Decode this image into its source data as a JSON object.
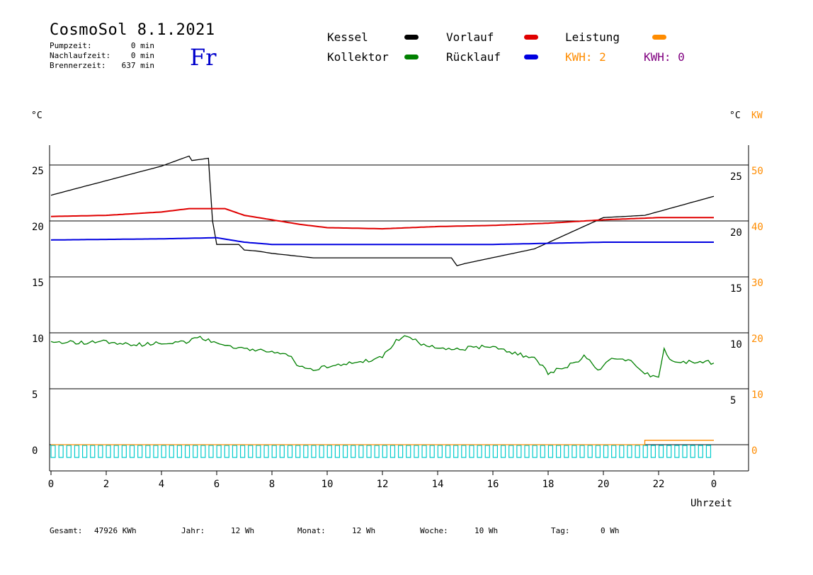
{
  "header": {
    "title": "CosmoSol 8.1.2021",
    "day": "Fr",
    "stats": [
      {
        "label": "Pumpzeit:",
        "value": "0 min"
      },
      {
        "label": "Nachlaufzeit:",
        "value": "0 min"
      },
      {
        "label": "Brennerzeit:",
        "value": "637 min"
      }
    ]
  },
  "legend": {
    "kessel": {
      "label": "Kessel",
      "color": "#000000"
    },
    "kollektor": {
      "label": "Kollektor",
      "color": "#008000"
    },
    "vorlauf": {
      "label": "Vorlauf",
      "color": "#e00000"
    },
    "ruecklauf": {
      "label": "Rücklauf",
      "color": "#0000e0"
    },
    "leistung": {
      "label": "Leistung",
      "color": "#ff8c00"
    },
    "kwh1": {
      "label": "KWH: 2",
      "color": "#ff8c00"
    },
    "kwh2": {
      "label": "KWH: 0",
      "color": "#800080"
    }
  },
  "footer": [
    {
      "label": "Gesamt:",
      "value": "47926 KWh"
    },
    {
      "label": "Jahr:",
      "value": "12 Wh"
    },
    {
      "label": "Monat:",
      "value": "12 Wh"
    },
    {
      "label": "Woche:",
      "value": "10 Wh"
    },
    {
      "label": "Tag:",
      "value": "0 Wh"
    }
  ],
  "chart_data": {
    "type": "line",
    "xlabel": "Uhrzeit",
    "x_ticks": [
      "0",
      "2",
      "4",
      "6",
      "8",
      "10",
      "12",
      "14",
      "16",
      "18",
      "20",
      "22",
      "0"
    ],
    "xlim": [
      0,
      24
    ],
    "left_axis": {
      "unit": "°C",
      "ticks": [
        "0",
        "5",
        "10",
        "15",
        "20",
        "25"
      ],
      "ylim": [
        -2,
        27
      ]
    },
    "right_axis_c": {
      "unit": "°C",
      "ticks": [
        "5",
        "10",
        "15",
        "20",
        "25"
      ]
    },
    "right_axis_kw": {
      "unit": "KW",
      "ticks": [
        "0",
        "10",
        "20",
        "30",
        "40",
        "50"
      ],
      "color": "#ff8c00"
    },
    "grid": "horizontal",
    "series": [
      {
        "name": "Kessel",
        "color": "#000000",
        "x": [
          0,
          4,
          5.0,
          5.1,
          5.7,
          5.85,
          6.0,
          6.8,
          7.0,
          7.5,
          8.0,
          9.5,
          14.5,
          14.7,
          15.0,
          17.5,
          20.0,
          21.5,
          24.0
        ],
        "y": [
          22.3,
          24.9,
          25.8,
          25.4,
          25.6,
          20.0,
          17.9,
          17.9,
          17.4,
          17.3,
          17.1,
          16.7,
          16.7,
          16.0,
          16.2,
          17.5,
          20.3,
          20.5,
          22.2
        ]
      },
      {
        "name": "Vorlauf",
        "color": "#e00000",
        "x": [
          0,
          2,
          4,
          5,
          6.3,
          7,
          8,
          9,
          10,
          12,
          14,
          16,
          18,
          20,
          22,
          24
        ],
        "y": [
          20.4,
          20.5,
          20.8,
          21.1,
          21.1,
          20.5,
          20.1,
          19.7,
          19.4,
          19.3,
          19.5,
          19.6,
          19.8,
          20.1,
          20.3,
          20.3
        ]
      },
      {
        "name": "Rücklauf",
        "color": "#0000e0",
        "x": [
          0,
          4,
          6,
          7,
          8,
          10,
          12,
          14,
          16,
          18,
          20,
          22,
          24
        ],
        "y": [
          18.3,
          18.4,
          18.5,
          18.1,
          17.9,
          17.9,
          17.9,
          17.9,
          17.9,
          18.0,
          18.1,
          18.1,
          18.1
        ]
      },
      {
        "name": "Kollektor",
        "color": "#008000",
        "x": [
          0,
          1,
          2,
          3,
          4,
          5,
          5.3,
          5.6,
          6.5,
          7.5,
          8.5,
          9.0,
          9.5,
          10.0,
          11,
          12,
          12.5,
          13.0,
          13.5,
          14.5,
          15,
          15.8,
          16.5,
          17.5,
          17.8,
          18.0,
          18.5,
          19.0,
          19.3,
          19.5,
          19.8,
          20.0,
          20.3,
          20.8,
          21.0,
          21.5,
          22.0,
          22.2,
          22.5,
          23.0,
          23.5,
          24.0
        ],
        "y": [
          9.2,
          9.1,
          9.2,
          8.9,
          9.1,
          9.2,
          9.6,
          9.4,
          8.8,
          8.5,
          8.2,
          7.0,
          6.6,
          7.0,
          7.3,
          7.8,
          9.4,
          9.7,
          8.9,
          8.5,
          8.6,
          8.8,
          8.4,
          7.7,
          7.0,
          6.4,
          6.9,
          7.3,
          8.0,
          7.6,
          6.6,
          7.2,
          7.7,
          7.5,
          7.6,
          6.4,
          5.9,
          8.6,
          7.4,
          7.4,
          7.5,
          7.3
        ]
      },
      {
        "name": "Leistung",
        "color": "#ff8c00",
        "x": [
          0,
          21.5,
          21.5,
          24.0
        ],
        "y": [
          0,
          0,
          0.4,
          0.4
        ]
      }
    ]
  }
}
